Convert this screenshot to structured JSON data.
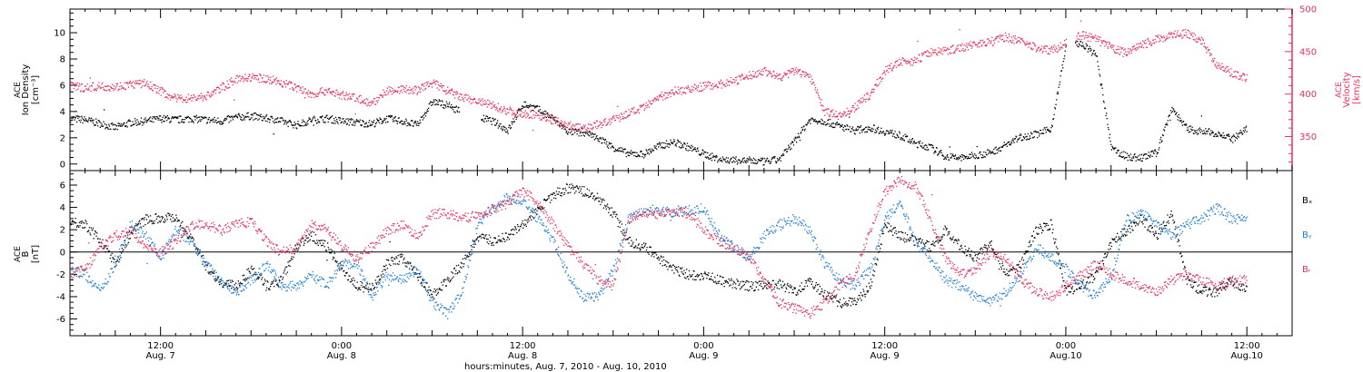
{
  "colors": {
    "black": "#000000",
    "velocity": "#e8305a",
    "by": "#1f7fd8",
    "bz": "#e8305a"
  },
  "chart_data": [
    {
      "type": "scatter",
      "panel": "density-velocity",
      "ylabel_left": [
        "ACE",
        "Ion Density",
        "[cm⁻³]"
      ],
      "ylabel_right": [
        "ACE",
        "Velocity",
        "[km/s]"
      ],
      "ylim_left": [
        -0.5,
        11.8
      ],
      "yticks_left": [
        "0",
        "2",
        "4",
        "6",
        "8",
        "10"
      ],
      "ylim_right": [
        310,
        500
      ],
      "yticks_right": [
        "350",
        "400",
        "450",
        "500"
      ],
      "series": [
        {
          "key": "density",
          "axis": "left",
          "color": "#000000",
          "x": [
            0,
            1,
            2,
            3,
            4,
            5,
            6,
            7,
            8,
            9,
            10,
            11,
            12,
            13,
            14,
            15,
            16,
            17,
            18,
            19,
            20,
            21,
            22,
            23,
            24,
            25,
            26,
            27,
            28,
            29,
            30,
            31,
            32,
            33,
            34,
            35,
            36,
            37,
            38,
            39,
            40,
            41,
            42,
            43,
            44,
            45,
            46,
            47,
            48,
            49,
            50,
            51,
            52,
            53,
            54,
            55,
            56,
            57,
            58,
            59,
            60,
            61,
            62,
            63,
            64,
            65,
            66,
            67,
            68,
            69,
            70,
            71,
            72,
            73,
            74,
            75,
            76,
            77,
            78
          ],
          "values": [
            3.5,
            3.4,
            3.1,
            2.8,
            3.2,
            3.3,
            3.5,
            3.4,
            3.5,
            3.4,
            3.3,
            3.6,
            3.7,
            3.5,
            3.3,
            3.0,
            3.4,
            3.5,
            3.3,
            3.2,
            3.1,
            3.5,
            3.3,
            3.0,
            4.8,
            4.5,
            4.0,
            3.6,
            3.3,
            2.6,
            4.6,
            4.2,
            3.5,
            2.5,
            2.4,
            2.0,
            1.3,
            0.8,
            0.8,
            1.4,
            1.7,
            1.3,
            0.8,
            0.4,
            0.3,
            0.3,
            0.2,
            0.4,
            1.8,
            3.4,
            3.3,
            2.9,
            2.6,
            2.8,
            2.5,
            2.2,
            1.6,
            1.3,
            0.6,
            0.5,
            0.7,
            0.9,
            1.5,
            2.1,
            2.3,
            2.7,
            9.1,
            9.2,
            8.3,
            1.2,
            0.6,
            0.5,
            0.9,
            4.3,
            2.7,
            2.5,
            2.4,
            1.9,
            2.7
          ]
        },
        {
          "key": "velocity",
          "axis": "right",
          "color": "#e8305a",
          "x": [
            0,
            1,
            2,
            3,
            4,
            5,
            6,
            7,
            8,
            9,
            10,
            11,
            12,
            13,
            14,
            15,
            16,
            17,
            18,
            19,
            20,
            21,
            22,
            23,
            24,
            25,
            26,
            27,
            28,
            29,
            30,
            31,
            32,
            33,
            34,
            35,
            36,
            37,
            38,
            39,
            40,
            41,
            42,
            43,
            44,
            45,
            46,
            47,
            48,
            49,
            50,
            51,
            52,
            53,
            54,
            55,
            56,
            57,
            58,
            59,
            60,
            61,
            62,
            63,
            64,
            65,
            66,
            67,
            68,
            69,
            70,
            71,
            72,
            73,
            74,
            75,
            76,
            77,
            78
          ],
          "values": [
            410,
            408,
            410,
            409,
            412,
            413,
            404,
            395,
            396,
            398,
            408,
            418,
            420,
            419,
            414,
            408,
            400,
            405,
            399,
            396,
            389,
            405,
            406,
            405,
            414,
            404,
            396,
            392,
            387,
            381,
            378,
            376,
            370,
            364,
            360,
            365,
            370,
            378,
            384,
            397,
            404,
            406,
            410,
            412,
            416,
            422,
            428,
            420,
            428,
            422,
            380,
            375,
            385,
            400,
            428,
            438,
            440,
            450,
            452,
            455,
            460,
            462,
            468,
            462,
            455,
            452,
            460,
            470,
            465,
            455,
            448,
            458,
            465,
            470,
            472,
            463,
            435,
            425,
            420
          ]
        }
      ]
    },
    {
      "type": "scatter",
      "panel": "magnetic-field",
      "ylabel_left": [
        "ACE",
        "B",
        "[nT]"
      ],
      "ylim_left": [
        -7.5,
        7.3
      ],
      "yticks_left": [
        "-6",
        "-4",
        "-2",
        "0",
        "2",
        "4",
        "6"
      ],
      "series": [
        {
          "key": "bx",
          "name": "Bₓ",
          "color": "#000000",
          "x": [
            0,
            1,
            2,
            3,
            4,
            5,
            6,
            7,
            8,
            9,
            10,
            11,
            12,
            13,
            14,
            15,
            16,
            17,
            18,
            19,
            20,
            21,
            22,
            23,
            24,
            25,
            26,
            27,
            28,
            29,
            30,
            31,
            32,
            33,
            34,
            35,
            36,
            37,
            38,
            39,
            40,
            41,
            42,
            43,
            44,
            45,
            46,
            47,
            48,
            49,
            50,
            51,
            52,
            53,
            54,
            55,
            56,
            57,
            58,
            59,
            60,
            61,
            62,
            63,
            64,
            65,
            66,
            67,
            68,
            69,
            70,
            71,
            72,
            73,
            74,
            75,
            76,
            77,
            78
          ],
          "values": [
            2.8,
            2.5,
            1.0,
            -1.0,
            1.8,
            3.0,
            3.1,
            3.2,
            1.2,
            -1.2,
            -2.8,
            -3.0,
            -1.5,
            -3.0,
            -2.5,
            0.5,
            1.5,
            0.5,
            -1.5,
            -3.0,
            -3.2,
            -1.0,
            -0.5,
            -2.0,
            -3.8,
            -2.5,
            -1.0,
            1.5,
            1.0,
            1.5,
            2.5,
            3.8,
            5.2,
            5.8,
            5.5,
            4.8,
            3.5,
            1.0,
            0.5,
            -0.5,
            -1.5,
            -2.0,
            -2.0,
            -2.5,
            -2.8,
            -3.0,
            -3.0,
            -2.8,
            -3.5,
            -2.5,
            -3.8,
            -4.5,
            -4.5,
            -3.0,
            2.5,
            1.5,
            1.0,
            0.5,
            2.0,
            0.5,
            -0.5,
            1.0,
            -2.0,
            -1.0,
            2.0,
            2.5,
            -3.5,
            -3.0,
            -2.0,
            1.0,
            2.0,
            3.0,
            1.5,
            3.5,
            -2.5,
            -3.5,
            -3.5,
            -2.5,
            -3.5
          ]
        },
        {
          "key": "by",
          "name": "Bᵧ",
          "color": "#1f7fd8",
          "x": [
            0,
            1,
            2,
            3,
            4,
            5,
            6,
            7,
            8,
            9,
            10,
            11,
            12,
            13,
            14,
            15,
            16,
            17,
            18,
            19,
            20,
            21,
            22,
            23,
            24,
            25,
            26,
            27,
            28,
            29,
            30,
            31,
            32,
            33,
            34,
            35,
            36,
            37,
            38,
            39,
            40,
            41,
            42,
            43,
            44,
            45,
            46,
            47,
            48,
            49,
            50,
            51,
            52,
            53,
            54,
            55,
            56,
            57,
            58,
            59,
            60,
            61,
            62,
            63,
            64,
            65,
            66,
            67,
            68,
            69,
            70,
            71,
            72,
            73,
            74,
            75,
            76,
            77,
            78
          ],
          "values": [
            -1.5,
            -2.0,
            -3.5,
            -1.0,
            2.5,
            1.5,
            -0.5,
            2.0,
            1.0,
            -1.0,
            -2.5,
            -3.5,
            -2.5,
            -1.0,
            -3.0,
            -3.0,
            -2.0,
            -3.0,
            -1.0,
            -1.0,
            -4.0,
            -2.0,
            -2.5,
            -1.5,
            -4.5,
            -5.5,
            -3.5,
            2.5,
            4.0,
            5.0,
            4.5,
            3.0,
            1.0,
            -2.0,
            -4.0,
            -4.0,
            -1.5,
            3.0,
            3.8,
            3.8,
            3.5,
            3.8,
            4.0,
            1.5,
            0.5,
            -0.5,
            1.5,
            2.5,
            3.0,
            2.0,
            -1.0,
            -2.5,
            -3.0,
            -1.5,
            3.0,
            4.5,
            1.0,
            -0.5,
            -2.5,
            -3.0,
            -4.0,
            -4.5,
            -3.5,
            -2.0,
            0.5,
            -0.5,
            -1.5,
            -3.0,
            -4.0,
            -2.0,
            3.0,
            3.5,
            2.5,
            1.5,
            2.5,
            3.0,
            4.0,
            3.0,
            3.0
          ]
        },
        {
          "key": "bz",
          "name": "Bᵣ",
          "color": "#e8305a",
          "x": [
            0,
            1,
            2,
            3,
            4,
            5,
            6,
            7,
            8,
            9,
            10,
            11,
            12,
            13,
            14,
            15,
            16,
            17,
            18,
            19,
            20,
            21,
            22,
            23,
            24,
            25,
            26,
            27,
            28,
            29,
            30,
            31,
            32,
            33,
            34,
            35,
            36,
            37,
            38,
            39,
            40,
            41,
            42,
            43,
            44,
            45,
            46,
            47,
            48,
            49,
            50,
            51,
            52,
            53,
            54,
            55,
            56,
            57,
            58,
            59,
            60,
            61,
            62,
            63,
            64,
            65,
            66,
            67,
            68,
            69,
            70,
            71,
            72,
            73,
            74,
            75,
            76,
            77,
            78
          ],
          "values": [
            -2.0,
            -1.5,
            0.5,
            1.5,
            2.0,
            0.5,
            0.0,
            1.0,
            2.5,
            2.5,
            2.0,
            2.5,
            2.8,
            1.0,
            0.0,
            0.5,
            2.5,
            2.0,
            0.5,
            -0.5,
            0.5,
            2.0,
            2.5,
            1.5,
            3.5,
            3.5,
            3.0,
            3.5,
            3.8,
            4.5,
            5.5,
            4.5,
            2.5,
            0.5,
            -1.0,
            -2.5,
            -3.0,
            3.0,
            3.5,
            3.5,
            3.8,
            3.5,
            2.0,
            1.0,
            0.5,
            -0.5,
            -2.5,
            -4.5,
            -5.0,
            -5.5,
            -4.5,
            -3.0,
            -2.0,
            2.0,
            5.5,
            6.5,
            6.0,
            3.0,
            -0.5,
            -2.0,
            -1.5,
            0.0,
            -0.5,
            -2.5,
            -3.5,
            -4.0,
            -3.0,
            -2.0,
            -1.0,
            -2.0,
            -2.5,
            -3.0,
            -3.5,
            -2.5,
            -2.0,
            -2.5,
            -3.0,
            -2.5,
            -2.5
          ]
        }
      ]
    }
  ],
  "time_axis": {
    "xlim_hours": [
      0,
      81
    ],
    "major_ticks": [
      {
        "h": 6,
        "time": "12:00",
        "date": "Aug. 7"
      },
      {
        "h": 18,
        "time": "0:00",
        "date": "Aug. 8"
      },
      {
        "h": 30,
        "time": "12:00",
        "date": "Aug. 8"
      },
      {
        "h": 42,
        "time": "0:00",
        "date": "Aug. 9"
      },
      {
        "h": 54,
        "time": "12:00",
        "date": "Aug. 9"
      },
      {
        "h": 66,
        "time": "0:00",
        "date": "Aug.10"
      },
      {
        "h": 78,
        "time": "12:00",
        "date": "Aug.10"
      }
    ],
    "xlabel": "hours:minutes, Aug.  7, 2010 - Aug. 10, 2010"
  }
}
